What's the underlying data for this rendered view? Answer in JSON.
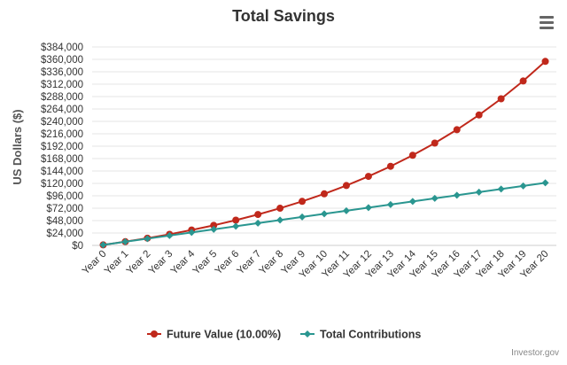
{
  "chart_data": {
    "type": "line",
    "title": "Total Savings",
    "ylabel": "US Dollars ($)",
    "xlabel": "",
    "categories": [
      "Year 0",
      "Year 1",
      "Year 2",
      "Year 3",
      "Year 4",
      "Year 5",
      "Year 6",
      "Year 7",
      "Year 8",
      "Year 9",
      "Year 10",
      "Year 11",
      "Year 12",
      "Year 13",
      "Year 14",
      "Year 15",
      "Year 16",
      "Year 17",
      "Year 18",
      "Year 19",
      "Year 20"
    ],
    "yticks": [
      "$0",
      "$24,000",
      "$48,000",
      "$72,000",
      "$96,000",
      "$120,000",
      "$144,000",
      "$168,000",
      "$192,000",
      "$216,000",
      "$240,000",
      "$264,000",
      "$288,000",
      "$312,000",
      "$336,000",
      "$360,000",
      "$384,000"
    ],
    "ylim": [
      0,
      384000
    ],
    "grid": true,
    "legend_position": "bottom",
    "series": [
      {
        "name": "Future Value (10.00%)",
        "color": "#c0281b",
        "marker": "circle",
        "values": [
          1000,
          7200,
          14020,
          21522,
          29774,
          38851,
          48836,
          59820,
          71902,
          85192,
          99811,
          115892,
          133581,
          153039,
          174443,
          197987,
          223886,
          252374,
          283712,
          318183,
          356101
        ]
      },
      {
        "name": "Total Contributions",
        "color": "#2a9690",
        "marker": "diamond",
        "values": [
          1000,
          7000,
          13000,
          19000,
          25000,
          31000,
          37000,
          43000,
          49000,
          55000,
          61000,
          67000,
          73000,
          79000,
          85000,
          91000,
          97000,
          103000,
          109000,
          115000,
          121000
        ]
      }
    ],
    "credits": "Investor.gov"
  },
  "ui": {
    "menu_icon": "hamburger-menu-icon",
    "grid_color": "#e6e6e6",
    "axis_label_color": "#555555"
  }
}
